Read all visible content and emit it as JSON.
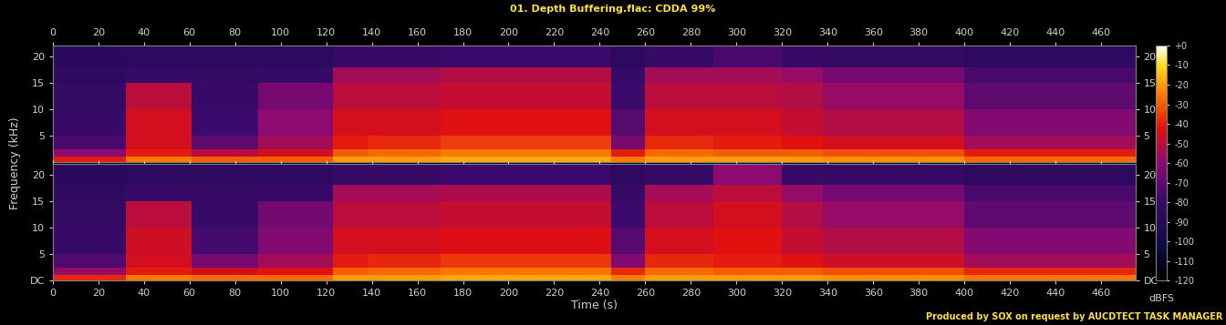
{
  "chart_data": {
    "type": "spectrogram",
    "title": "01. Depth Buffering.flac: CDDA 99%",
    "footer": "Produced by SOX on request by AUCDTECT TASK MANAGER",
    "x_label": "Time (s)",
    "y_label": "Frequency (kHz)",
    "xlim": [
      0,
      475
    ],
    "xticks": [
      0,
      20,
      40,
      60,
      80,
      100,
      120,
      140,
      160,
      180,
      200,
      220,
      240,
      260,
      280,
      300,
      320,
      340,
      360,
      380,
      400,
      420,
      440,
      460
    ],
    "ylim": [
      0,
      22.05
    ],
    "time_edges": [
      0,
      32,
      61,
      90,
      123,
      138,
      170,
      245,
      260,
      290,
      320,
      338,
      400,
      475
    ],
    "freq_edges": [
      0,
      1,
      2.5,
      5,
      10,
      15,
      18,
      22.05
    ],
    "color_range": [
      -120,
      0
    ],
    "color_ticks": [
      {
        "value": 0,
        "label": "+0"
      },
      -10,
      -20,
      -30,
      -40,
      -50,
      -60,
      -70,
      -80,
      -90,
      -100,
      -110,
      -120
    ],
    "color_label": "dBFS",
    "channels": [
      {
        "yticks": [
          5,
          10,
          15,
          20
        ],
        "values": [
          [
            -40,
            -25,
            -30,
            -30,
            -20,
            -20,
            -18,
            -25,
            -20,
            -20,
            -20,
            -22,
            -28
          ],
          [
            -60,
            -40,
            -50,
            -45,
            -30,
            -28,
            -25,
            -40,
            -28,
            -30,
            -30,
            -32,
            -40
          ],
          [
            -75,
            -45,
            -70,
            -55,
            -40,
            -38,
            -35,
            -65,
            -38,
            -40,
            -42,
            -45,
            -55
          ],
          [
            -80,
            -45,
            -78,
            -60,
            -45,
            -45,
            -42,
            -72,
            -45,
            -45,
            -48,
            -52,
            -62
          ],
          [
            -82,
            -50,
            -80,
            -65,
            -50,
            -50,
            -48,
            -78,
            -50,
            -50,
            -52,
            -58,
            -70
          ],
          [
            -84,
            -80,
            -82,
            -80,
            -55,
            -55,
            -52,
            -80,
            -55,
            -55,
            -58,
            -65,
            -75
          ],
          [
            -86,
            -85,
            -85,
            -85,
            -80,
            -80,
            -78,
            -85,
            -80,
            -75,
            -80,
            -82,
            -85
          ]
        ]
      },
      {
        "yticks": [
          {
            "value": 0,
            "label": "DC"
          },
          5,
          10,
          15,
          20
        ],
        "values": [
          [
            -38,
            -25,
            -28,
            -28,
            -20,
            -20,
            -18,
            -24,
            -20,
            -20,
            -20,
            -22,
            -26
          ],
          [
            -58,
            -40,
            -45,
            -42,
            -30,
            -28,
            -26,
            -38,
            -28,
            -30,
            -30,
            -32,
            -38
          ],
          [
            -74,
            -45,
            -65,
            -55,
            -40,
            -38,
            -36,
            -62,
            -38,
            -40,
            -42,
            -46,
            -55
          ],
          [
            -80,
            -46,
            -76,
            -62,
            -45,
            -45,
            -43,
            -72,
            -45,
            -42,
            -48,
            -52,
            -62
          ],
          [
            -82,
            -50,
            -80,
            -66,
            -50,
            -50,
            -48,
            -78,
            -50,
            -45,
            -52,
            -58,
            -70
          ],
          [
            -84,
            -80,
            -82,
            -80,
            -55,
            -55,
            -53,
            -80,
            -55,
            -50,
            -58,
            -65,
            -75
          ],
          [
            -86,
            -85,
            -85,
            -85,
            -80,
            -80,
            -78,
            -85,
            -80,
            -60,
            -80,
            -82,
            -85
          ]
        ]
      }
    ]
  }
}
